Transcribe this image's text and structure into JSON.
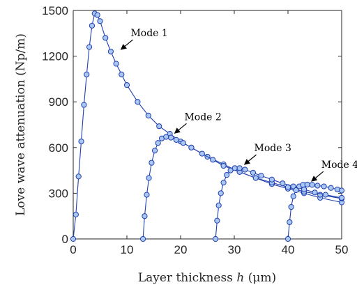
{
  "chart_data": {
    "type": "scatter",
    "xlabel_pre": "Layer thickness ",
    "xlabel_var": "h",
    "xlabel_unit": " (μm)",
    "ylabel": "Love wave attenuation (Np/m)",
    "xlim": [
      0,
      50
    ],
    "ylim": [
      0,
      1500
    ],
    "xticks": [
      "0",
      "10",
      "20",
      "30",
      "40",
      "50"
    ],
    "yticks": [
      "0",
      "300",
      "600",
      "900",
      "1200",
      "1500"
    ],
    "grid": false,
    "colors": {
      "line": "#1f3fb0",
      "marker_fill": "#a9c7f2"
    },
    "series": [
      {
        "name": "Mode 1",
        "x": [
          0,
          0.5,
          1,
          1.5,
          2,
          2.5,
          3,
          3.5,
          4,
          4.5,
          5,
          6,
          7,
          8,
          9,
          10,
          12,
          14,
          16,
          18,
          20,
          22,
          25,
          28,
          31,
          34,
          37,
          40,
          43,
          46,
          50
        ],
        "y": [
          0,
          160,
          410,
          640,
          880,
          1080,
          1260,
          1400,
          1480,
          1470,
          1430,
          1320,
          1230,
          1150,
          1080,
          1010,
          900,
          810,
          740,
          690,
          640,
          600,
          540,
          490,
          440,
          400,
          360,
          330,
          300,
          270,
          240
        ]
      },
      {
        "name": "Mode 2",
        "x": [
          13,
          13.3,
          13.7,
          14.1,
          14.6,
          15.2,
          15.8,
          16.5,
          17.3,
          18.2,
          19.2,
          20.5,
          22,
          24,
          26,
          28,
          31,
          34,
          37,
          40,
          43,
          46,
          50
        ],
        "y": [
          0,
          150,
          290,
          400,
          500,
          580,
          630,
          660,
          670,
          665,
          650,
          630,
          600,
          560,
          520,
          480,
          440,
          400,
          370,
          340,
          310,
          290,
          265
        ]
      },
      {
        "name": "Mode 3",
        "x": [
          26.5,
          26.8,
          27.1,
          27.5,
          28,
          28.6,
          29.3,
          30.1,
          31,
          32,
          33.5,
          35,
          37,
          39,
          41,
          43,
          45,
          47,
          50
        ],
        "y": [
          0,
          120,
          220,
          300,
          370,
          420,
          450,
          465,
          465,
          455,
          435,
          415,
          390,
          365,
          345,
          325,
          305,
          290,
          270
        ]
      },
      {
        "name": "Mode 4",
        "x": [
          40,
          40.3,
          40.6,
          41,
          41.5,
          42.1,
          42.8,
          43.6,
          44.5,
          45.5,
          46.7,
          48,
          49.2,
          50
        ],
        "y": [
          0,
          110,
          210,
          280,
          320,
          345,
          355,
          357,
          355,
          350,
          345,
          335,
          325,
          318
        ]
      }
    ],
    "annotations": [
      {
        "text": "Mode 1",
        "series": 0,
        "point_x": 8.5,
        "point_y": 1230
      },
      {
        "text": "Mode 2",
        "series": 1,
        "point_x": 18.5,
        "point_y": 680
      },
      {
        "text": "Mode 3",
        "series": 2,
        "point_x": 31.5,
        "point_y": 475
      },
      {
        "text": "Mode 4",
        "series": 3,
        "point_x": 44,
        "point_y": 365
      }
    ]
  }
}
